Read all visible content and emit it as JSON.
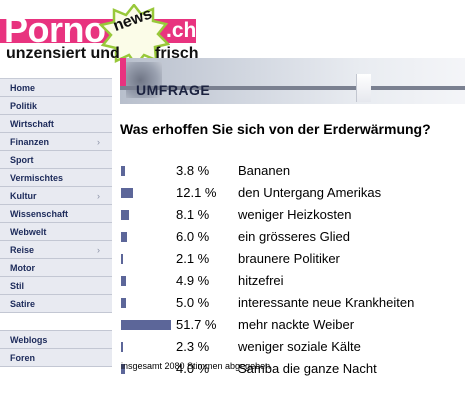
{
  "logo": {
    "main": "Porno",
    "badge": "news",
    "suffix": ".ch",
    "tagline_left": "unzensiert und",
    "tagline_right": "frisch",
    "brand_color": "#e8337f"
  },
  "sidebar": {
    "items": [
      {
        "label": "Home",
        "has_submenu": false
      },
      {
        "label": "Politik",
        "has_submenu": false
      },
      {
        "label": "Wirtschaft",
        "has_submenu": false
      },
      {
        "label": "Finanzen",
        "has_submenu": true
      },
      {
        "label": "Sport",
        "has_submenu": false
      },
      {
        "label": "Vermischtes",
        "has_submenu": false
      },
      {
        "label": "Kultur",
        "has_submenu": true
      },
      {
        "label": "Wissenschaft",
        "has_submenu": false
      },
      {
        "label": "Webwelt",
        "has_submenu": false
      },
      {
        "label": "Reise",
        "has_submenu": true
      },
      {
        "label": "Motor",
        "has_submenu": false
      },
      {
        "label": "Stil",
        "has_submenu": false
      },
      {
        "label": "Satire",
        "has_submenu": false
      }
    ],
    "items_secondary": [
      {
        "label": "Weblogs"
      },
      {
        "label": "Foren"
      }
    ],
    "chevron": "›"
  },
  "banner": {
    "title": "UMFRAGE"
  },
  "poll": {
    "question": "Was erhoffen Sie sich von der Erderwärmung?",
    "bar_color": "#5c6699",
    "results": [
      {
        "percent": 3.8,
        "percent_label": "3.8 %",
        "answer": "Bananen"
      },
      {
        "percent": 12.1,
        "percent_label": "12.1 %",
        "answer": "den Untergang Amerikas"
      },
      {
        "percent": 8.1,
        "percent_label": "8.1 %",
        "answer": "weniger Heizkosten"
      },
      {
        "percent": 6.0,
        "percent_label": "6.0 %",
        "answer": "ein grösseres Glied"
      },
      {
        "percent": 2.1,
        "percent_label": "2.1 %",
        "answer": "braunere Politiker"
      },
      {
        "percent": 4.9,
        "percent_label": "4.9 %",
        "answer": "hitzefrei"
      },
      {
        "percent": 5.0,
        "percent_label": "5.0 %",
        "answer": "interessante neue Krankheiten"
      },
      {
        "percent": 51.7,
        "percent_label": "51.7 %",
        "answer": "mehr nackte Weiber"
      },
      {
        "percent": 2.3,
        "percent_label": "2.3 %",
        "answer": "weniger soziale Kälte"
      },
      {
        "percent": 4.0,
        "percent_label": "4.0 %",
        "answer": "Samba die ganze Nacht"
      }
    ],
    "total_text": "insgesamt 2080 Stimmen abgegeben"
  }
}
